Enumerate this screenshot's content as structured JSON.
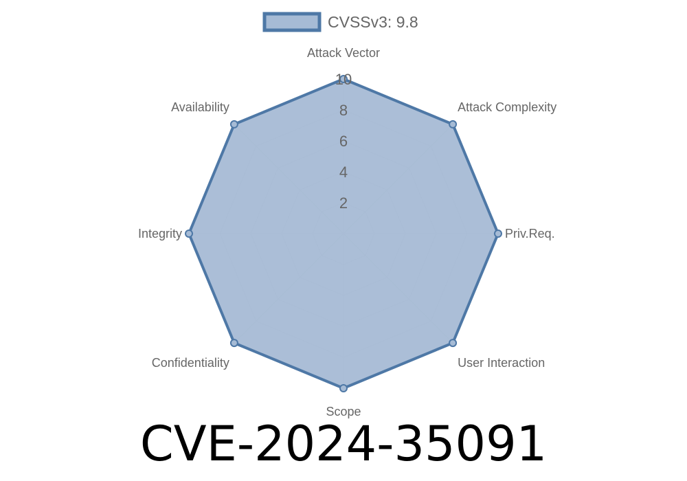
{
  "chart_data": {
    "type": "radar",
    "title": "CVE-2024-35091",
    "categories": [
      "Attack Vector",
      "Attack Complexity",
      "Priv.Req.",
      "User Interaction",
      "Scope",
      "Confidentiality",
      "Integrity",
      "Availability"
    ],
    "series": [
      {
        "name": "CVSSv3: 9.8",
        "values": [
          10,
          10,
          10,
          10,
          10,
          10,
          10,
          10
        ]
      }
    ],
    "rlim": [
      0,
      10
    ],
    "ticks": [
      "2",
      "4",
      "6",
      "8",
      "10"
    ],
    "grid": true,
    "legend": "top",
    "colors": {
      "stroke": "#4e78a6",
      "fill": "#a6bbd5",
      "grid": "#cccccc",
      "text": "#666666"
    }
  }
}
